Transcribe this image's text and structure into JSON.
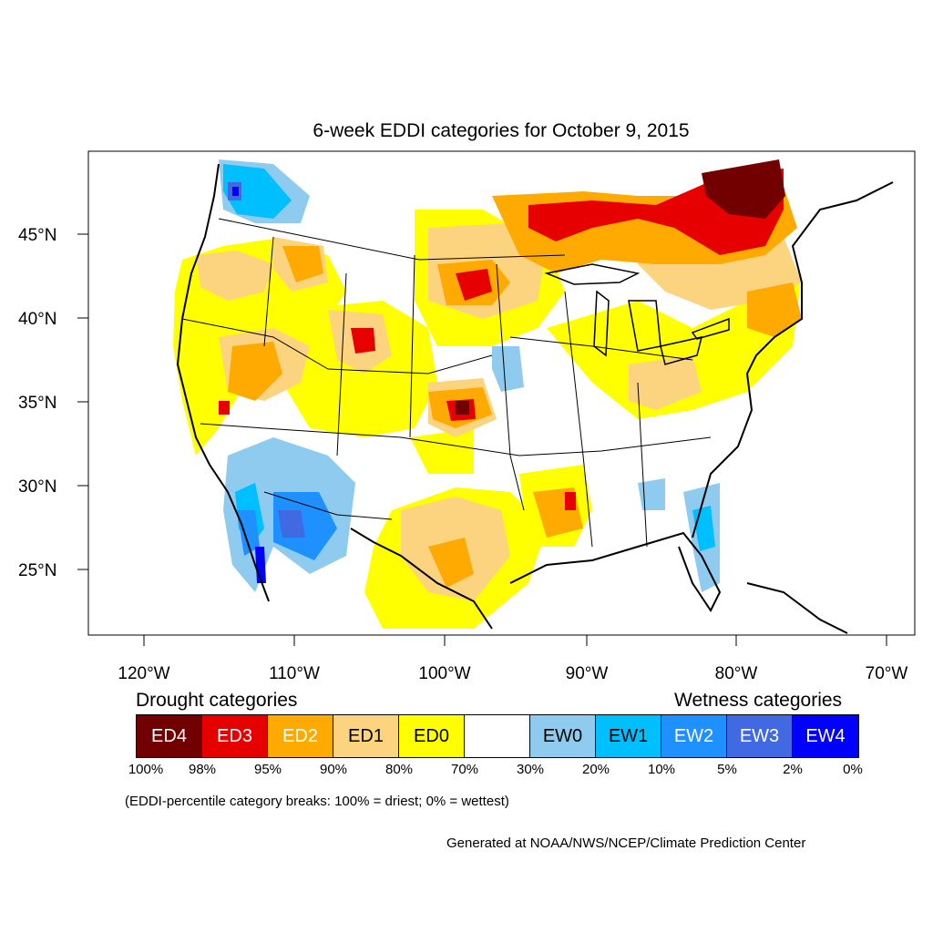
{
  "title": "6-week EDDI categories for October 9, 2015",
  "map": {
    "lat_labels": [
      "45°N",
      "40°N",
      "35°N",
      "30°N",
      "25°N"
    ],
    "lon_labels": [
      "120°W",
      "110°W",
      "100°W",
      "90°W",
      "80°W",
      "70°W"
    ]
  },
  "legend": {
    "drought_heading": "Drought categories",
    "wetness_heading": "Wetness categories",
    "categories": [
      {
        "label": "ED4",
        "color": "#730000",
        "text_color": "#ffffff"
      },
      {
        "label": "ED3",
        "color": "#e60000",
        "text_color": "#ffffff"
      },
      {
        "label": "ED2",
        "color": "#ffaa00",
        "text_color": "#ffffff"
      },
      {
        "label": "ED1",
        "color": "#fcd37f",
        "text_color": "#000000"
      },
      {
        "label": "ED0",
        "color": "#ffff00",
        "text_color": "#000000"
      },
      {
        "label": "",
        "color": "#ffffff",
        "text_color": "#000000"
      },
      {
        "label": "EW0",
        "color": "#8ecbee",
        "text_color": "#000000"
      },
      {
        "label": "EW1",
        "color": "#00bfff",
        "text_color": "#000000"
      },
      {
        "label": "EW2",
        "color": "#1e90ff",
        "text_color": "#ffffff"
      },
      {
        "label": "EW3",
        "color": "#4169e1",
        "text_color": "#ffffff"
      },
      {
        "label": "EW4",
        "color": "#0000ff",
        "text_color": "#ffffff"
      }
    ],
    "percentiles": [
      "100%",
      "98%",
      "95%",
      "90%",
      "80%",
      "70%",
      "30%",
      "20%",
      "10%",
      "5%",
      "2%",
      "0%"
    ]
  },
  "note": "(EDDI-percentile category breaks: 100% = driest; 0% = wettest)",
  "credit": "Generated at NOAA/NWS/NCEP/Climate Prediction Center"
}
